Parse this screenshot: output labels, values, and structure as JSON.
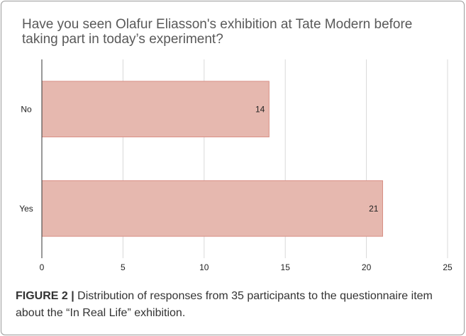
{
  "chart_data": {
    "type": "bar",
    "orientation": "horizontal",
    "title": "Have you seen Olafur Eliasson's exhibition at Tate Modern before taking part in today’s experiment?",
    "xlabel": "",
    "ylabel": "",
    "categories": [
      "No",
      "Yes"
    ],
    "values": [
      14,
      21
    ],
    "data_labels": [
      "14",
      "21"
    ],
    "xlim": [
      0,
      25
    ],
    "xticks": [
      0,
      5,
      10,
      15,
      20,
      25
    ],
    "xtick_labels": [
      "0",
      "5",
      "10",
      "15",
      "20",
      "25"
    ],
    "grid": "vertical",
    "legend": "none",
    "bar_color": "#e6b8af",
    "bar_edge_color": "#d88f84"
  },
  "caption": {
    "label": "FIGURE 2 |",
    "text": " Distribution of responses from 35 participants to the questionnaire item about the “In Real Life” exhibition."
  }
}
